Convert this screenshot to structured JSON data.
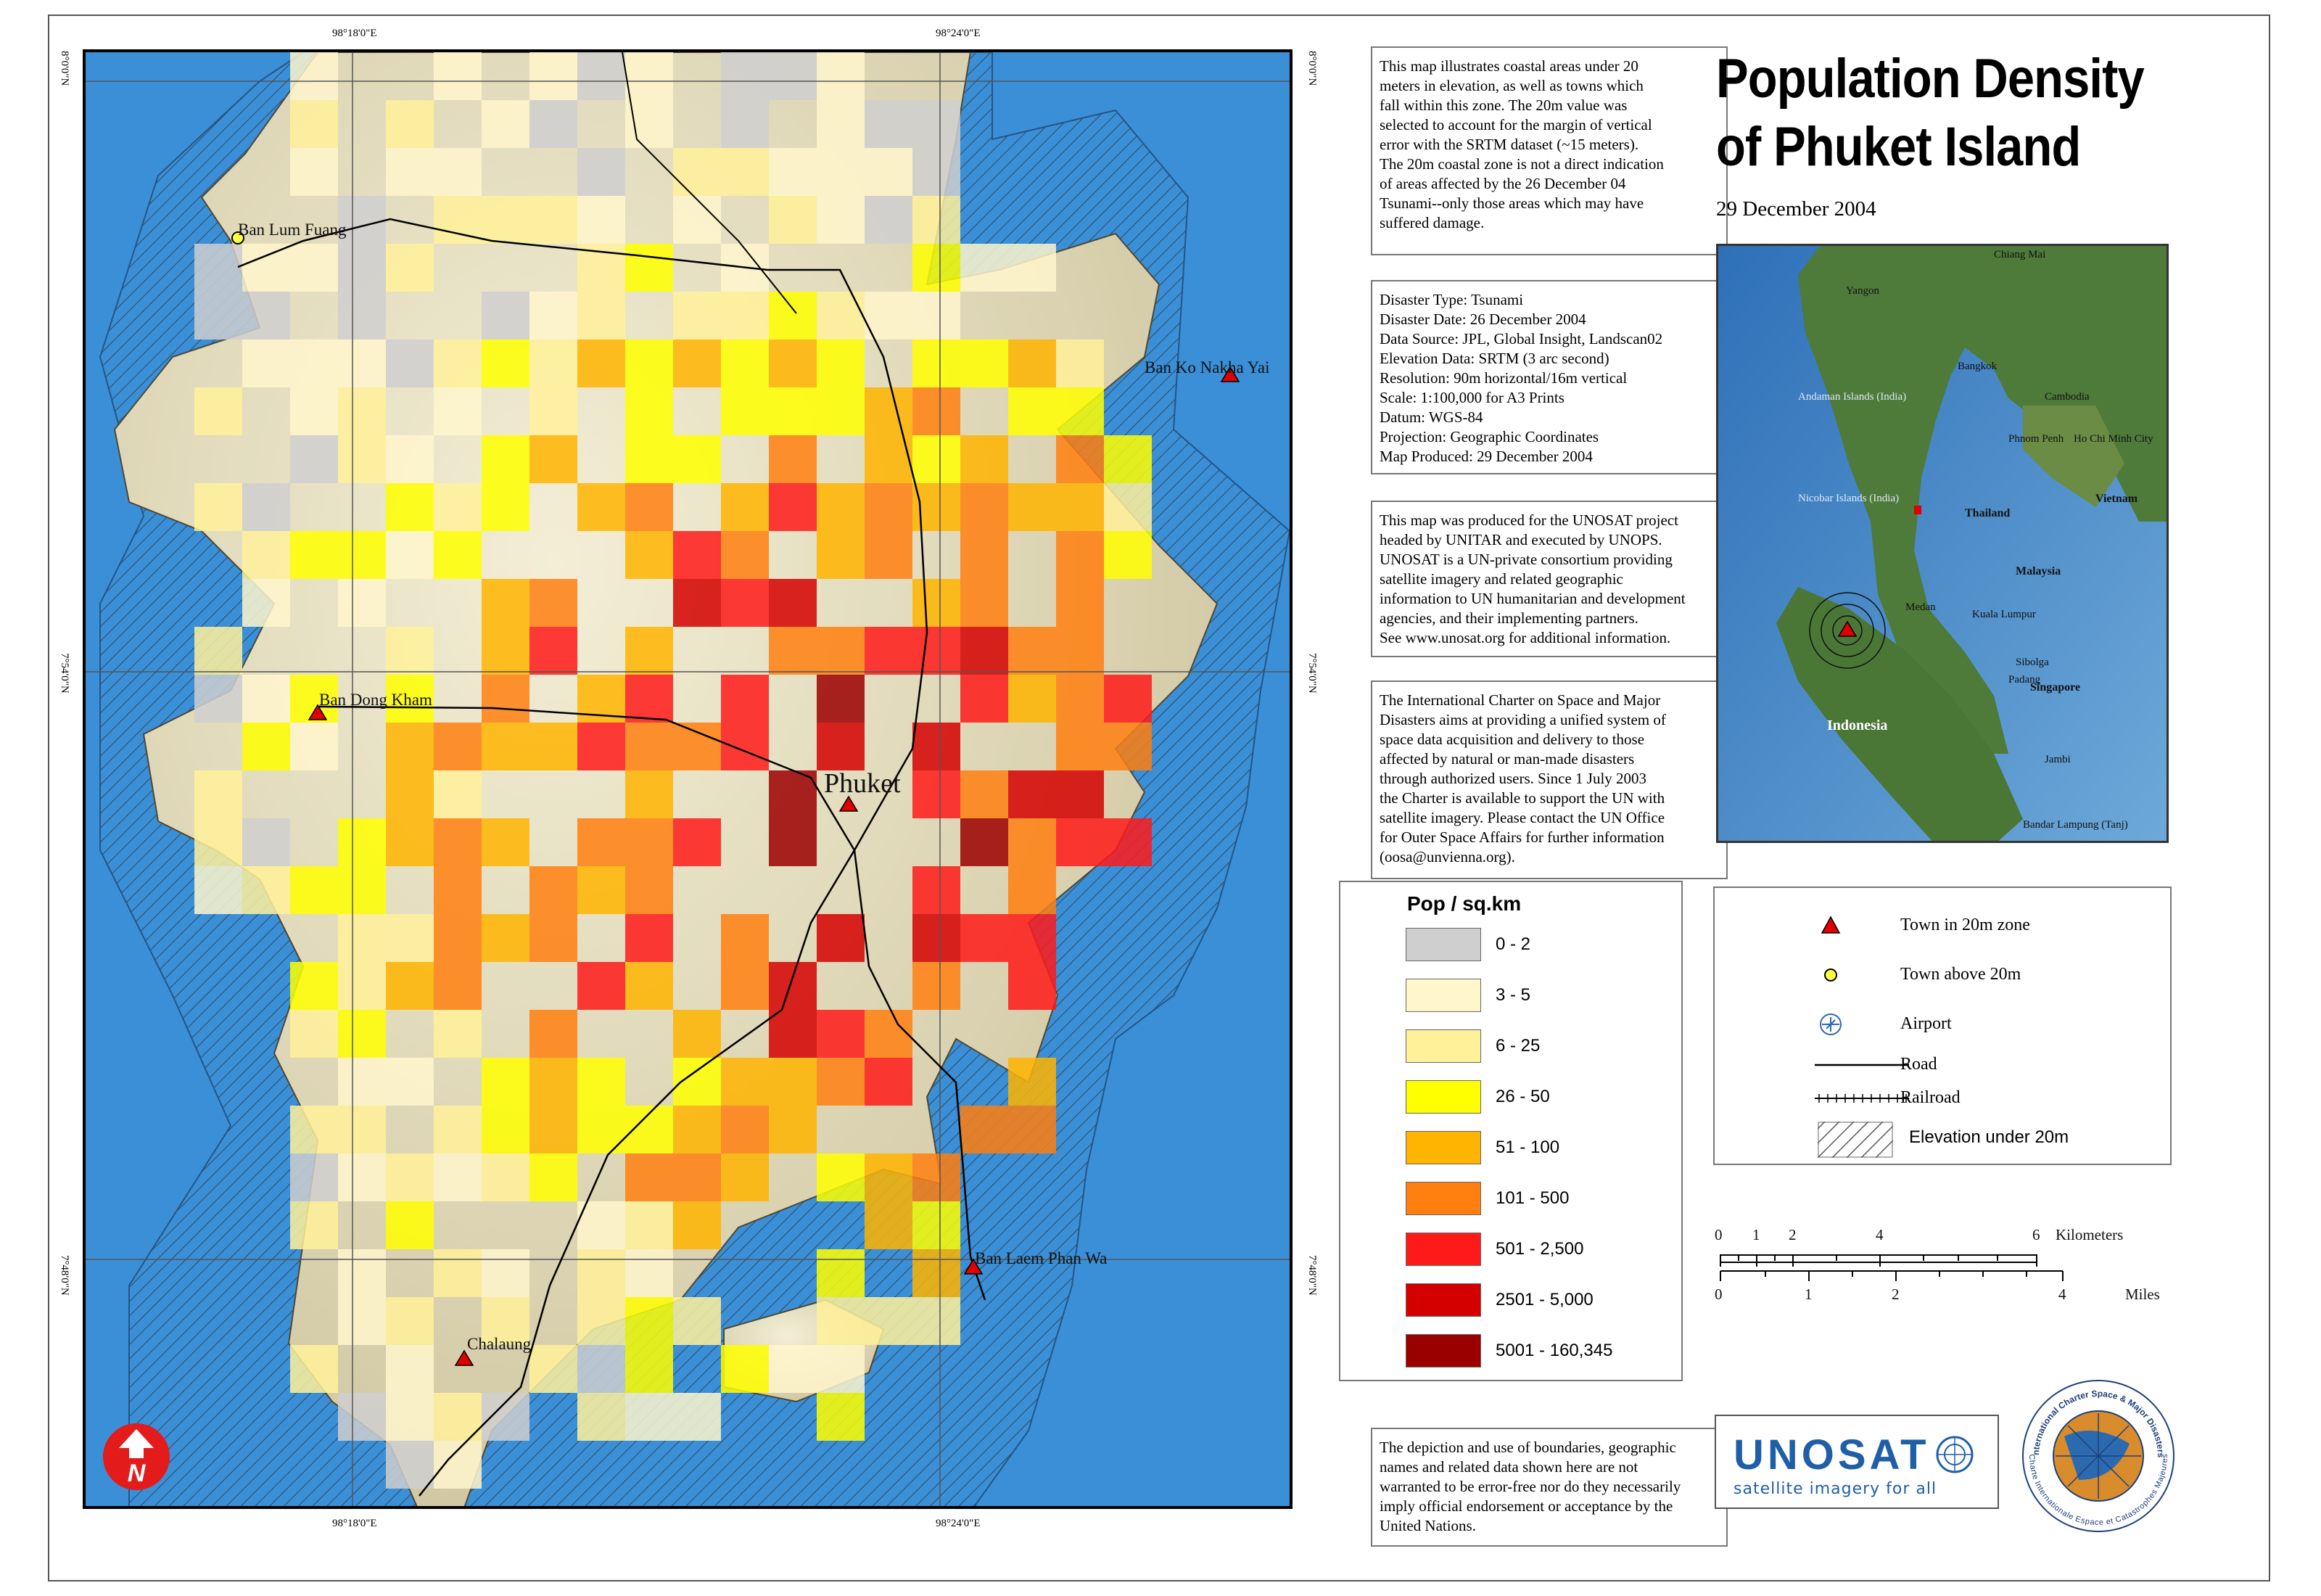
{
  "title": {
    "line1": "Population Density",
    "line2": "of Phuket Island"
  },
  "date": "29 December 2004",
  "coords": {
    "top_left": "98°18'0\"E",
    "top_right": "98°24'0\"E",
    "bottom_left": "98°18'0\"E",
    "bottom_right": "98°24'0\"E",
    "left_top": "8°0'0\"N",
    "left_mid": "7°54'0\"N",
    "left_bot": "7°48'0\"N",
    "right_top": "8°0'0\"N",
    "right_mid": "7°54'0\"N",
    "right_bot": "7°48'0\"N"
  },
  "places": {
    "ban_lum_fuang": "Ban Lum Fuang",
    "ban_ko_nakha_yai": "Ban Ko Nakha Yai",
    "ban_dong_kham": "Ban Dong Kham",
    "phuket": "Phuket",
    "ban_laem_phan_wa": "Ban Laem Phan Wa",
    "chalaung": "Chalaung"
  },
  "description": [
    "This map illustrates coastal areas under 20",
    "meters in elevation, as well as towns which",
    "fall within this zone. The 20m value was",
    "selected to account for the margin of vertical",
    "error with the SRTM dataset (~15 meters).",
    "The 20m coastal zone is not a direct indication",
    "of areas affected by the 26 December 04",
    "Tsunami--only those areas which may have",
    "suffered damage."
  ],
  "metadata": [
    "Disaster Type: Tsunami",
    "Disaster Date: 26 December 2004",
    "Data Source: JPL, Global Insight, Landscan02",
    "Elevation Data: SRTM (3 arc second)",
    "Resolution: 90m horizontal/16m vertical",
    "Scale: 1:100,000 for A3 Prints",
    "Datum: WGS-84",
    "Projection: Geographic Coordinates",
    "Map Produced: 29 December 2004"
  ],
  "unosat_text": [
    "This map was produced for the UNOSAT project",
    "headed by UNITAR and executed by UNOPS.",
    "UNOSAT is a UN-private consortium providing",
    "satellite imagery and related geographic",
    "information to UN humanitarian and development",
    "agencies, and their implementing partners.",
    "See www.unosat.org for additional information."
  ],
  "charter_text": [
    "The International Charter on Space and Major",
    "Disasters aims at providing a unified system of",
    "space data acquisition and delivery to those",
    "affected by natural or man-made disasters",
    "through authorized users. Since 1 July 2003",
    "the Charter is available to support the UN with",
    "satellite imagery. Please contact the UN Office",
    "for Outer Space Affairs for further information",
    "(oosa@unvienna.org)."
  ],
  "disclaimer": [
    "The depiction and use of boundaries, geographic",
    "names and related data shown here are not",
    "warranted to be error-free nor do they necessarily",
    "imply official endorsement or acceptance by the",
    "United Nations."
  ],
  "legend": {
    "title": "Pop / sq.km",
    "items": [
      {
        "label": "0 - 2",
        "color": "#cfcfcf"
      },
      {
        "label": "3 - 5",
        "color": "#fff6cc"
      },
      {
        "label": "6 - 25",
        "color": "#fff19a"
      },
      {
        "label": "26 - 50",
        "color": "#ffff00"
      },
      {
        "label": "51 - 100",
        "color": "#ffb400"
      },
      {
        "label": "101 - 500",
        "color": "#ff7f11"
      },
      {
        "label": "501 - 2,500",
        "color": "#ff1a1a"
      },
      {
        "label": "2501 - 5,000",
        "color": "#d40000"
      },
      {
        "label": "5001 - 160,345",
        "color": "#9b0000"
      }
    ]
  },
  "symbols": {
    "town_20m": "Town in 20m zone",
    "town_above": "Town above 20m",
    "airport": "Airport",
    "road": "Road",
    "railroad": "Railroad",
    "elevation": "Elevation under 20m"
  },
  "scale": {
    "km_ticks": [
      "0",
      "1",
      "2",
      "4",
      "6"
    ],
    "km_unit": "Kilometers",
    "mi_ticks": [
      "0",
      "1",
      "2",
      "4"
    ],
    "mi_unit": "Miles"
  },
  "inset": {
    "labels": {
      "yangon": "Yangon",
      "chiang": "Chiang Mai",
      "bangkok": "Bangkok",
      "andaman": "Andaman Islands (India)",
      "cambodia": "Cambodia",
      "phnom": "Phnom Penh",
      "hcm": "Ho Chi Minh City",
      "nicobar": "Nicobar Islands (India)",
      "thailand": "Thailand",
      "vietnam": "Vietnam",
      "malaysia": "Malaysia",
      "medan": "Medan",
      "kuala": "Kuala Lumpur",
      "singapore": "Singapore",
      "sibolga": "Sibolga",
      "indonesia": "Indonesia",
      "jambi": "Jambi",
      "bandar": "Bandar Lampung (Tanj)",
      "padang": "Padang"
    }
  },
  "logo": {
    "name": "UNOSAT",
    "tagline": "satellite imagery for all"
  },
  "charter_seal": {
    "top": "International Charter Space & Major Disasters",
    "bottom": "Charte Internationale Espace et Catastrophes Majeures"
  },
  "north": "N",
  "colors": {
    "sea": "#3a8fd6",
    "land": "#ece5c8",
    "hatch": "#333333",
    "brand": "#1f5fa8"
  }
}
